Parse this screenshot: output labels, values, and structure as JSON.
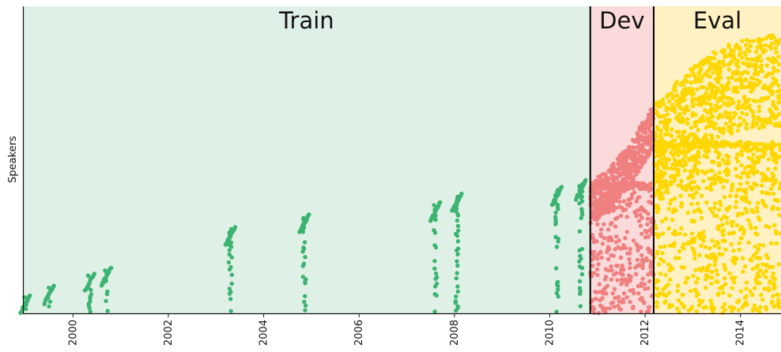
{
  "chart_data": {
    "type": "scatter",
    "ylabel": "Speakers",
    "xlim": [
      1998.95,
      2014.85
    ],
    "ylim": [
      0,
      1
    ],
    "xticks": [
      "2000",
      "2002",
      "2004",
      "2006",
      "2008",
      "2010",
      "2012",
      "2014"
    ],
    "splits": [
      {
        "name": "Train",
        "start": 1998.95,
        "end": 2010.85,
        "color": "#dff1e6",
        "point_color": "#3cb371"
      },
      {
        "name": "Dev",
        "start": 2010.85,
        "end": 2012.18,
        "color": "#fadada",
        "point_color": "#f08080"
      },
      {
        "name": "Eval",
        "start": 2012.18,
        "end": 2014.85,
        "color": "#fff1c1",
        "point_color": "#ffd700"
      }
    ],
    "boundaries": [
      2010.85,
      2012.18
    ],
    "train_clusters": [
      {
        "x": 1999.0,
        "y_top": 0.06
      },
      {
        "x": 1999.5,
        "y_top": 0.09
      },
      {
        "x": 2000.35,
        "y_top": 0.13
      },
      {
        "x": 2000.7,
        "y_top": 0.15
      },
      {
        "x": 2003.3,
        "y_top": 0.28
      },
      {
        "x": 2004.85,
        "y_top": 0.32
      },
      {
        "x": 2007.6,
        "y_top": 0.36
      },
      {
        "x": 2008.05,
        "y_top": 0.39
      },
      {
        "x": 2010.15,
        "y_top": 0.41
      },
      {
        "x": 2010.65,
        "y_top": 0.43
      }
    ],
    "dev_growth": [
      [
        2010.85,
        0.43
      ],
      [
        2011.25,
        0.47
      ],
      [
        2011.7,
        0.56
      ],
      [
        2012.18,
        0.68
      ]
    ],
    "eval_growth": [
      [
        2012.18,
        0.68
      ],
      [
        2012.7,
        0.76
      ],
      [
        2013.3,
        0.84
      ],
      [
        2013.9,
        0.89
      ],
      [
        2014.85,
        0.91
      ]
    ]
  }
}
